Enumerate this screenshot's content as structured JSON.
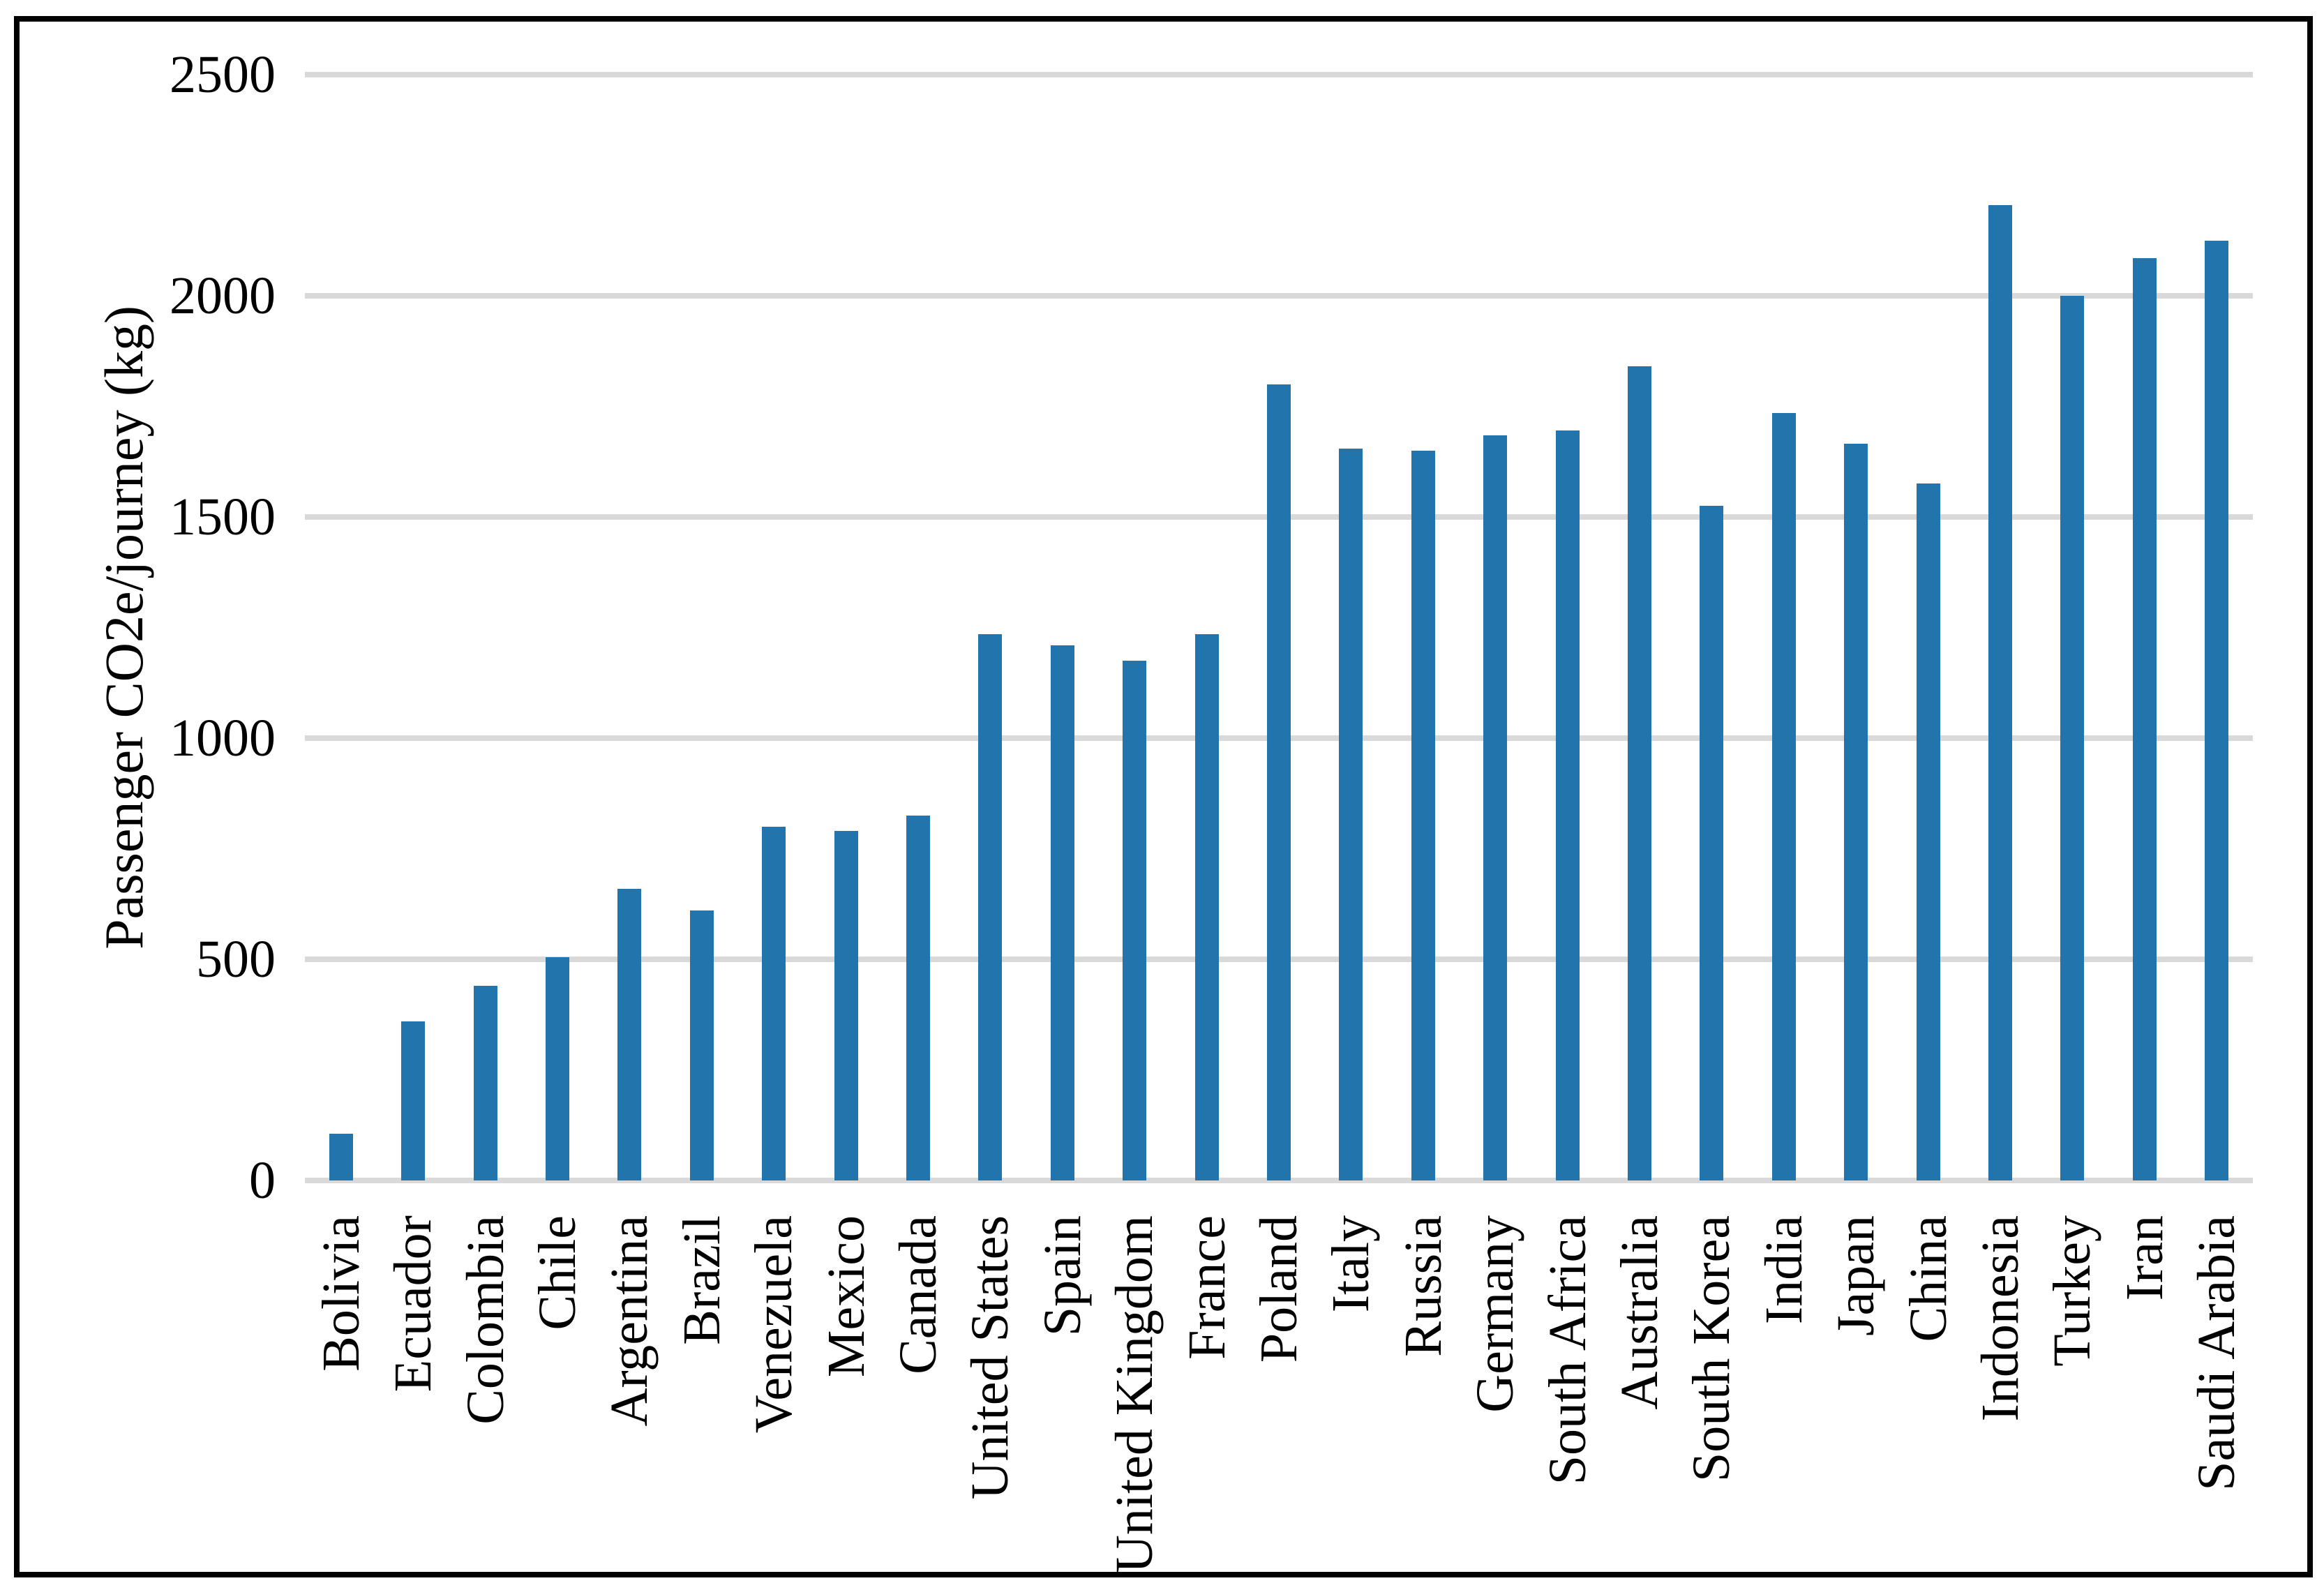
{
  "chart_data": {
    "type": "bar",
    "title": "",
    "xlabel": "",
    "ylabel": "Passenger CO2e/journey (kg)",
    "ylim": [
      0,
      2500
    ],
    "yticks": [
      0,
      500,
      1000,
      1500,
      2000,
      2500
    ],
    "grid": "horizontal",
    "legend": "none",
    "bar_color": "#2274ac",
    "gridline_color": "#d9d9d9",
    "frame_color": "#000000",
    "categories": [
      "Bolivia",
      "Ecuador",
      "Colombia",
      "Chile",
      "Argentina",
      "Brazil",
      "Venezuela",
      "Mexico",
      "Canada",
      "United States",
      "Spain",
      "United Kingdom",
      "France",
      "Poland",
      "Italy",
      "Russia",
      "Germany",
      "South Africa",
      "Australia",
      "South Korea",
      "India",
      "Japan",
      "China",
      "Indonesia",
      "Turkey",
      "Iran",
      "Saudi Arabia"
    ],
    "values": [
      105,
      360,
      440,
      505,
      660,
      610,
      800,
      790,
      825,
      1235,
      1210,
      1175,
      1235,
      1800,
      1655,
      1650,
      1685,
      1695,
      1840,
      1525,
      1735,
      1665,
      1575,
      2205,
      2000,
      2085,
      2125
    ]
  }
}
